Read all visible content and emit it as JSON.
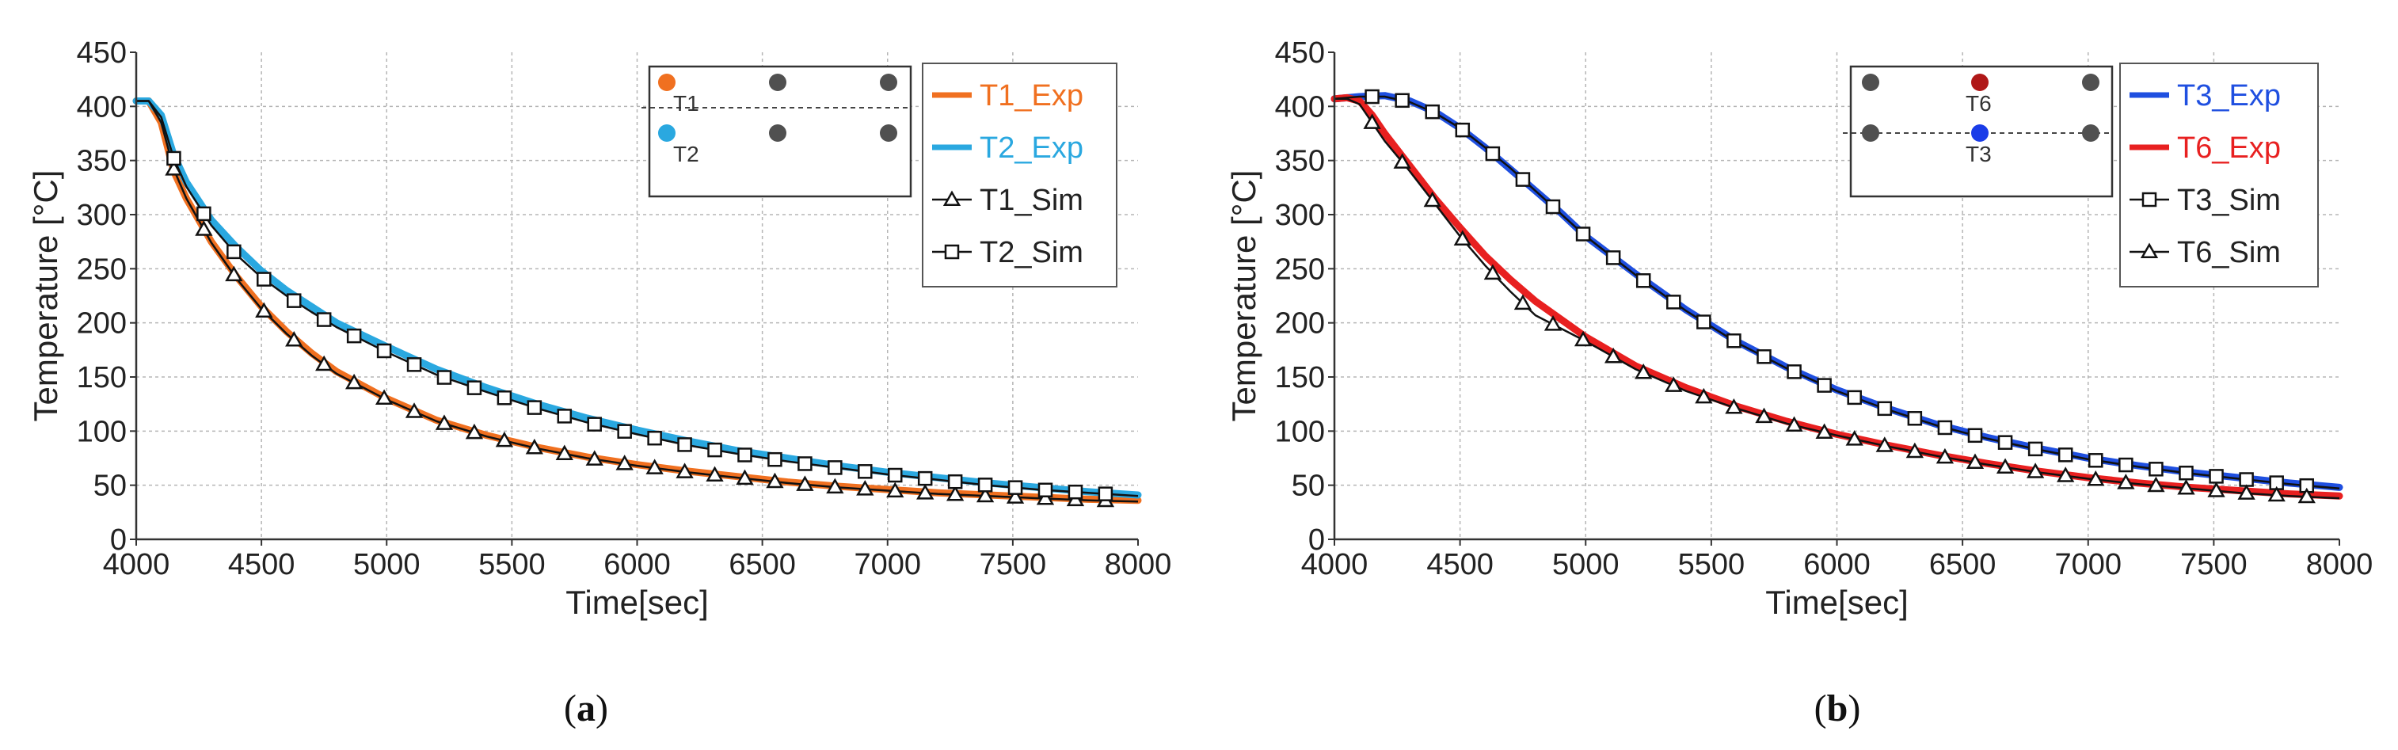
{
  "chart_data": [
    {
      "type": "line",
      "panel_id": "a",
      "caption_prefix": "(",
      "caption_letter": "a",
      "caption_suffix": ")",
      "xlabel": "Time[sec]",
      "ylabel": "Temperature [°C]",
      "xlim": [
        4000,
        8000
      ],
      "ylim": [
        0,
        450
      ],
      "xticks": [
        4000,
        4500,
        5000,
        5500,
        6000,
        6500,
        7000,
        7500,
        8000
      ],
      "yticks": [
        0,
        50,
        100,
        150,
        200,
        250,
        300,
        350,
        400,
        450
      ],
      "grid": true,
      "legend_position": "top-right",
      "series": [
        {
          "name": "T1_Exp",
          "color": "#f07020",
          "marker": "none",
          "x": [
            4000,
            4050,
            4100,
            4150,
            4200,
            4300,
            4400,
            4500,
            4600,
            4700,
            4800,
            5000,
            5200,
            5400,
            5600,
            5800,
            6000,
            6200,
            6400,
            6600,
            6800,
            7000,
            7200,
            7400,
            7600,
            7800,
            8000
          ],
          "y": [
            405,
            405,
            385,
            340,
            315,
            275,
            243,
            215,
            192,
            172,
            155,
            130,
            110,
            96,
            85,
            76,
            69,
            63,
            58,
            53,
            49,
            46,
            43,
            41,
            39,
            37,
            36
          ]
        },
        {
          "name": "T2_Exp",
          "color": "#2aa8e0",
          "marker": "none",
          "x": [
            4000,
            4050,
            4100,
            4150,
            4200,
            4300,
            4400,
            4500,
            4600,
            4700,
            4800,
            5000,
            5200,
            5400,
            5600,
            5800,
            6000,
            6200,
            6400,
            6600,
            6800,
            7000,
            7200,
            7400,
            7600,
            7800,
            8000
          ],
          "y": [
            405,
            405,
            392,
            355,
            330,
            295,
            270,
            248,
            230,
            215,
            200,
            178,
            157,
            140,
            125,
            112,
            101,
            91,
            82,
            75,
            68,
            62,
            57,
            52,
            48,
            44,
            41
          ]
        },
        {
          "name": "T1_Sim",
          "color": "#111111",
          "marker": "triangle",
          "x": [
            4000,
            4050,
            4100,
            4150,
            4200,
            4300,
            4400,
            4500,
            4600,
            4700,
            4800,
            5000,
            5200,
            5400,
            5600,
            5800,
            6000,
            6200,
            6400,
            6600,
            6800,
            7000,
            7200,
            7400,
            7600,
            7800,
            8000
          ],
          "y": [
            405,
            405,
            385,
            342,
            315,
            274,
            241,
            213,
            190,
            170,
            153,
            129,
            109,
            95,
            84,
            75,
            68,
            62,
            57,
            52,
            48,
            45,
            42,
            40,
            38,
            36,
            35
          ]
        },
        {
          "name": "T2_Sim",
          "color": "#111111",
          "marker": "square",
          "x": [
            4000,
            4050,
            4100,
            4150,
            4200,
            4300,
            4400,
            4500,
            4600,
            4700,
            4800,
            5000,
            5200,
            5400,
            5600,
            5800,
            6000,
            6200,
            6400,
            6600,
            6800,
            7000,
            7200,
            7400,
            7600,
            7800,
            8000
          ],
          "y": [
            405,
            405,
            390,
            352,
            326,
            290,
            263,
            242,
            225,
            210,
            196,
            173,
            152,
            136,
            121,
            108,
            97,
            87,
            79,
            72,
            66,
            60,
            55,
            50,
            46,
            43,
            40
          ]
        }
      ],
      "inset": {
        "labels": [
          "T1",
          "T2"
        ],
        "points": [
          {
            "col": 0,
            "row": 0,
            "color": "#f07020",
            "label": "T1"
          },
          {
            "col": 0,
            "row": 1,
            "color": "#2aa8e0",
            "label": "T2"
          },
          {
            "col": 1,
            "row": 0,
            "color": "#505050"
          },
          {
            "col": 2,
            "row": 0,
            "color": "#505050"
          },
          {
            "col": 1,
            "row": 1,
            "color": "#505050"
          },
          {
            "col": 2,
            "row": 1,
            "color": "#505050"
          }
        ]
      }
    },
    {
      "type": "line",
      "panel_id": "b",
      "caption_prefix": "(",
      "caption_letter": "b",
      "caption_suffix": ")",
      "xlabel": "Time[sec]",
      "ylabel": "Temperature [°C]",
      "xlim": [
        4000,
        8000
      ],
      "ylim": [
        0,
        450
      ],
      "xticks": [
        4000,
        4500,
        5000,
        5500,
        6000,
        6500,
        7000,
        7500,
        8000
      ],
      "yticks": [
        0,
        50,
        100,
        150,
        200,
        250,
        300,
        350,
        400,
        450
      ],
      "grid": true,
      "legend_position": "top-right",
      "series": [
        {
          "name": "T3_Exp",
          "color": "#1f4fe0",
          "marker": "none",
          "x": [
            4000,
            4100,
            4200,
            4300,
            4400,
            4500,
            4600,
            4700,
            4800,
            4900,
            5000,
            5200,
            5400,
            5600,
            5800,
            6000,
            6200,
            6400,
            6600,
            6800,
            7000,
            7200,
            7400,
            7600,
            7800,
            8000
          ],
          "y": [
            407,
            409,
            410,
            405,
            395,
            380,
            362,
            342,
            322,
            302,
            280,
            245,
            212,
            183,
            159,
            138,
            121,
            106,
            94,
            84,
            75,
            68,
            62,
            57,
            52,
            48
          ]
        },
        {
          "name": "T6_Exp",
          "color": "#e82020",
          "marker": "none",
          "x": [
            4000,
            4050,
            4100,
            4150,
            4200,
            4300,
            4400,
            4500,
            4600,
            4700,
            4800,
            5000,
            5200,
            5400,
            5600,
            5800,
            6000,
            6200,
            6400,
            6600,
            6800,
            7000,
            7200,
            7400,
            7600,
            7800,
            8000
          ],
          "y": [
            407,
            408,
            405,
            392,
            375,
            345,
            315,
            288,
            262,
            240,
            220,
            187,
            160,
            140,
            123,
            109,
            97,
            87,
            78,
            70,
            63,
            57,
            52,
            48,
            45,
            42,
            40
          ]
        },
        {
          "name": "T3_Sim",
          "color": "#111111",
          "marker": "square",
          "x": [
            4000,
            4100,
            4200,
            4300,
            4400,
            4500,
            4600,
            4700,
            4800,
            4900,
            5000,
            5200,
            5400,
            5600,
            5800,
            6000,
            6200,
            6400,
            6600,
            6800,
            7000,
            7200,
            7400,
            7600,
            7800,
            8000
          ],
          "y": [
            407,
            409,
            409,
            404,
            394,
            380,
            362,
            343,
            322,
            301,
            280,
            244,
            211,
            182,
            158,
            137,
            120,
            105,
            93,
            83,
            74,
            67,
            61,
            56,
            51,
            47
          ]
        },
        {
          "name": "T6_Sim",
          "color": "#111111",
          "marker": "triangle",
          "x": [
            4000,
            4050,
            4100,
            4150,
            4200,
            4300,
            4400,
            4500,
            4600,
            4700,
            4800,
            5000,
            5200,
            5400,
            5600,
            5800,
            6000,
            6200,
            6400,
            6600,
            6800,
            7000,
            7200,
            7400,
            7600,
            7800,
            8000
          ],
          "y": [
            407,
            407,
            402,
            385,
            368,
            340,
            310,
            280,
            253,
            229,
            207,
            183,
            157,
            137,
            121,
            107,
            96,
            86,
            77,
            69,
            62,
            56,
            51,
            47,
            43,
            40,
            38
          ]
        }
      ],
      "inset": {
        "labels": [
          "T6",
          "T3"
        ],
        "points": [
          {
            "col": 1,
            "row": 0,
            "color": "#b01818",
            "label": "T6"
          },
          {
            "col": 1,
            "row": 1,
            "color": "#1a3ce8",
            "label": "T3"
          },
          {
            "col": 0,
            "row": 0,
            "color": "#505050"
          },
          {
            "col": 2,
            "row": 0,
            "color": "#505050"
          },
          {
            "col": 0,
            "row": 1,
            "color": "#505050"
          },
          {
            "col": 2,
            "row": 1,
            "color": "#505050"
          }
        ]
      }
    }
  ]
}
